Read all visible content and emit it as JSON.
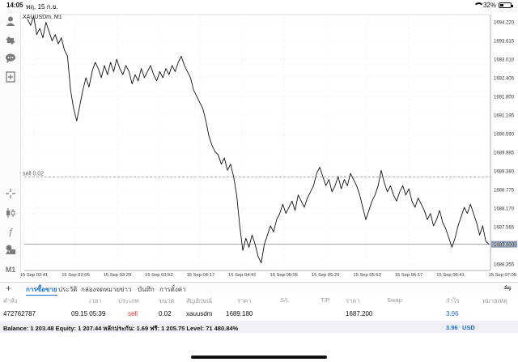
{
  "status": {
    "time": "14:05",
    "date": "พฤ. 15 ก.ย.",
    "battery": "32%",
    "battery_level": 0.32
  },
  "chart": {
    "symbol_label": "XAUUSDm, M1",
    "order_line_label": "sell 0.02",
    "price_ticks": [
      "1694.220",
      "1693.615",
      "1693.010",
      "1692.405",
      "1691.800",
      "1691.195",
      "1690.590",
      "1689.985",
      "1689.380",
      "1688.775",
      "1688.170",
      "1687.565",
      "1687.000",
      "1686.355"
    ],
    "current_price": "1687.000",
    "time_ticks": [
      "15 Sep 02:41",
      "15 Sep 03:05",
      "15 Sep 03:29",
      "15 Sep 03:53",
      "15 Sep 04:17",
      "15 Sep 04:41",
      "15 Sep 05:05",
      "15 Sep 05:29",
      "15 Sep 05:53",
      "15 Sep 06:17",
      "15 Sep 06:41",
      "15 Sep 07:05"
    ],
    "accent_color": "#1f6fd1"
  },
  "chart_data": {
    "type": "line",
    "ylim": [
      1686.15,
      1694.45
    ],
    "grid": true,
    "order_level": 1689.18,
    "current_level": 1687.0,
    "series": [
      {
        "values": [
          1694.3,
          1694.1,
          1694.4,
          1693.8,
          1694.0,
          1693.7,
          1694.2,
          1693.9,
          1693.6,
          1693.8,
          1693.5,
          1693.7,
          1693.3,
          1693.1,
          1692.0,
          1691.4,
          1691.0,
          1691.5,
          1692.0,
          1692.4,
          1692.1,
          1692.6,
          1692.9,
          1692.7,
          1692.4,
          1692.8,
          1692.5,
          1692.9,
          1692.6,
          1693.0,
          1692.7,
          1692.5,
          1692.8,
          1692.6,
          1692.2,
          1692.5,
          1692.3,
          1692.7,
          1692.4,
          1692.6,
          1692.8,
          1692.5,
          1692.3,
          1692.6,
          1692.4,
          1692.7,
          1692.5,
          1692.8,
          1692.6,
          1692.9,
          1693.1,
          1692.8,
          1692.6,
          1692.4,
          1692.0,
          1691.8,
          1691.6,
          1691.4,
          1691.0,
          1690.5,
          1690.2,
          1690.0,
          1689.9,
          1689.6,
          1689.8,
          1689.4,
          1689.6,
          1689.2,
          1688.6,
          1687.6,
          1686.8,
          1687.2,
          1686.9,
          1687.3,
          1687.0,
          1686.6,
          1686.4,
          1687.0,
          1687.3,
          1687.6,
          1687.4,
          1687.8,
          1688.0,
          1688.3,
          1688.0,
          1688.2,
          1688.4,
          1688.1,
          1688.6,
          1688.4,
          1688.2,
          1688.5,
          1688.7,
          1688.9,
          1689.3,
          1689.5,
          1689.2,
          1688.9,
          1689.1,
          1688.7,
          1688.9,
          1689.2,
          1688.8,
          1689.1,
          1688.9,
          1689.3,
          1689.1,
          1688.9,
          1688.6,
          1688.2,
          1687.8,
          1688.1,
          1688.4,
          1688.6,
          1688.9,
          1689.4,
          1689.0,
          1688.7,
          1688.9,
          1688.6,
          1688.4,
          1688.7,
          1688.9,
          1688.6,
          1688.8,
          1688.4,
          1688.2,
          1688.5,
          1688.3,
          1688.1,
          1687.8,
          1688.0,
          1687.6,
          1687.8,
          1688.1,
          1687.7,
          1687.5,
          1687.2,
          1686.9,
          1687.2,
          1687.6,
          1687.9,
          1688.2,
          1688.0,
          1688.3,
          1688.0,
          1687.7,
          1687.3,
          1687.6,
          1687.1,
          1687.0
        ]
      }
    ]
  },
  "tabs": {
    "items": [
      "การซื้อขาย",
      "ประวัติ",
      "กล่องจดหมาย",
      "ข่าว",
      "บันทึก",
      "การตั้งค่า"
    ]
  },
  "table": {
    "headers": [
      "คำสั่ง",
      "เวลา",
      "ประเภท",
      "ขนาด",
      "สัญลักษณ์",
      "ราคา",
      "S/L",
      "T/P",
      "ราคา",
      "Swap",
      "กำไร",
      "หมายเหตุ"
    ],
    "row": {
      "order": "472762787",
      "time": "09.15 05:39",
      "type": "sell",
      "size": "0.02",
      "symbol": "xauusdm",
      "open_price": "1689.180",
      "price": "1687.200",
      "profit": "3.96"
    }
  },
  "balance": {
    "text": "Balance: 1 203.48 Equity: 1 207.44 หลักประกัน: 1.69 ฟรี: 1 205.75 Level: 71 480.84%",
    "total": "3.96",
    "currency": "USD"
  },
  "icons": [
    "person-icon",
    "trade-icon",
    "chat-icon",
    "new-order-icon",
    "crosshair-icon",
    "candles-icon",
    "indicator-icon",
    "objects-icon",
    "timeframe-icon",
    "add-icon",
    "sort-icon"
  ]
}
